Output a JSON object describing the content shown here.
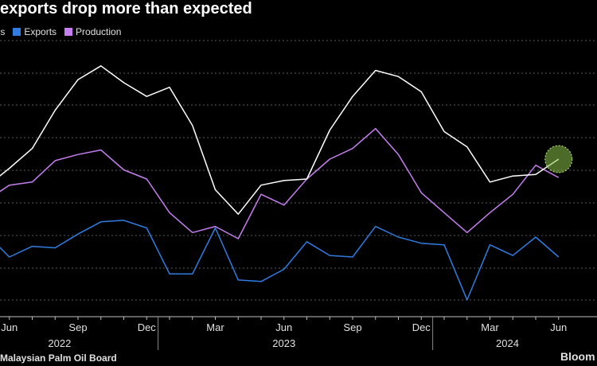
{
  "title": "exports drop more than expected",
  "legend": [
    {
      "label": "ries",
      "color": "#ffffff"
    },
    {
      "label": "Exports",
      "color": "#2f7de1"
    },
    {
      "label": "Production",
      "color": "#c67ef0"
    }
  ],
  "source": "Malaysian Palm Oil Board",
  "brand": "Bloom",
  "chart_data": {
    "type": "line",
    "title": "exports drop more than expected",
    "x": [
      "2022-05",
      "2022-06",
      "2022-07",
      "2022-08",
      "2022-09",
      "2022-10",
      "2022-11",
      "2022-12",
      "2023-01",
      "2023-02",
      "2023-03",
      "2023-04",
      "2023-05",
      "2023-06",
      "2023-07",
      "2023-08",
      "2023-09",
      "2023-10",
      "2023-11",
      "2023-12",
      "2024-01",
      "2024-02",
      "2024-03",
      "2024-04",
      "2024-05",
      "2024-06"
    ],
    "x_tick_labels": [
      "Jun",
      "Sep",
      "Dec",
      "Mar",
      "Jun",
      "Sep",
      "Dec",
      "Mar",
      "Jun"
    ],
    "x_tick_months": [
      "2022-06",
      "2022-09",
      "2022-12",
      "2023-03",
      "2023-06",
      "2023-09",
      "2023-12",
      "2024-03",
      "2024-06"
    ],
    "year_labels": [
      "2022",
      "2023",
      "2024"
    ],
    "grid": true,
    "series": [
      {
        "name": "ries",
        "color": "#ffffff",
        "values": [
          1.65,
          1.77,
          1.9,
          2.15,
          2.35,
          2.44,
          2.33,
          2.24,
          2.3,
          2.05,
          1.63,
          1.47,
          1.66,
          1.69,
          1.7,
          2.02,
          2.24,
          2.41,
          2.37,
          2.27,
          2.01,
          1.91,
          1.68,
          1.72,
          1.73,
          1.83
        ]
      },
      {
        "name": "Exports",
        "color": "#2f7de1",
        "values": [
          1.34,
          1.19,
          1.26,
          1.25,
          1.34,
          1.42,
          1.43,
          1.38,
          1.08,
          1.08,
          1.38,
          1.04,
          1.03,
          1.11,
          1.29,
          1.2,
          1.19,
          1.39,
          1.32,
          1.28,
          1.27,
          0.91,
          1.27,
          1.2,
          1.32,
          1.19
        ]
      },
      {
        "name": "Production",
        "color": "#c67ef0",
        "values": [
          1.56,
          1.66,
          1.68,
          1.82,
          1.86,
          1.89,
          1.76,
          1.7,
          1.48,
          1.35,
          1.39,
          1.31,
          1.6,
          1.53,
          1.7,
          1.83,
          1.9,
          2.03,
          1.86,
          1.61,
          1.48,
          1.35,
          1.48,
          1.6,
          1.79,
          1.71
        ]
      }
    ],
    "highlight": {
      "series": "ries",
      "x": "2024-06"
    },
    "ylim": [
      0.8,
      2.6
    ]
  }
}
